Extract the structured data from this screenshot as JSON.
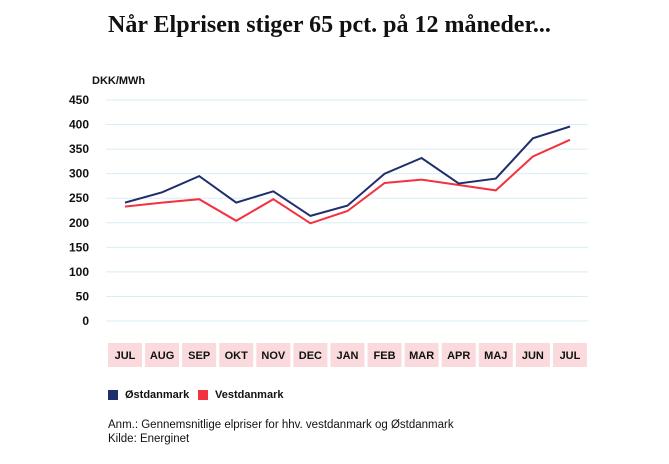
{
  "chart_data": {
    "type": "line",
    "title": "Når Elprisen stiger 65 pct. på 12 måneder...",
    "ylabel": "DKK/MWh",
    "xlabel": "",
    "categories": [
      "JUL",
      "AUG",
      "SEP",
      "OKT",
      "NOV",
      "DEC",
      "JAN",
      "FEB",
      "MAR",
      "APR",
      "MAJ",
      "JUN",
      "JUL"
    ],
    "ylim": [
      0,
      450
    ],
    "yticks": [
      0,
      50,
      100,
      150,
      200,
      250,
      300,
      350,
      400,
      450
    ],
    "grid": true,
    "legend_position": "bottom-left",
    "series": [
      {
        "name": "Østdanmark",
        "color": "#1f2f6b",
        "values": [
          241,
          262,
          295,
          241,
          264,
          214,
          235,
          300,
          332,
          280,
          290,
          372,
          396
        ]
      },
      {
        "name": "Vestdanmark",
        "color": "#f2323f",
        "values": [
          233,
          241,
          248,
          204,
          248,
          199,
          224,
          281,
          288,
          277,
          266,
          335,
          369
        ]
      }
    ],
    "tick_bg_color": "#fadadd",
    "grid_color": "#d7eef7"
  },
  "notes": {
    "line1": "Anm.: Gennemsnitlige elpriser for hhv. vestdanmark og Østdanmark",
    "line2": "Kilde: Energinet"
  }
}
